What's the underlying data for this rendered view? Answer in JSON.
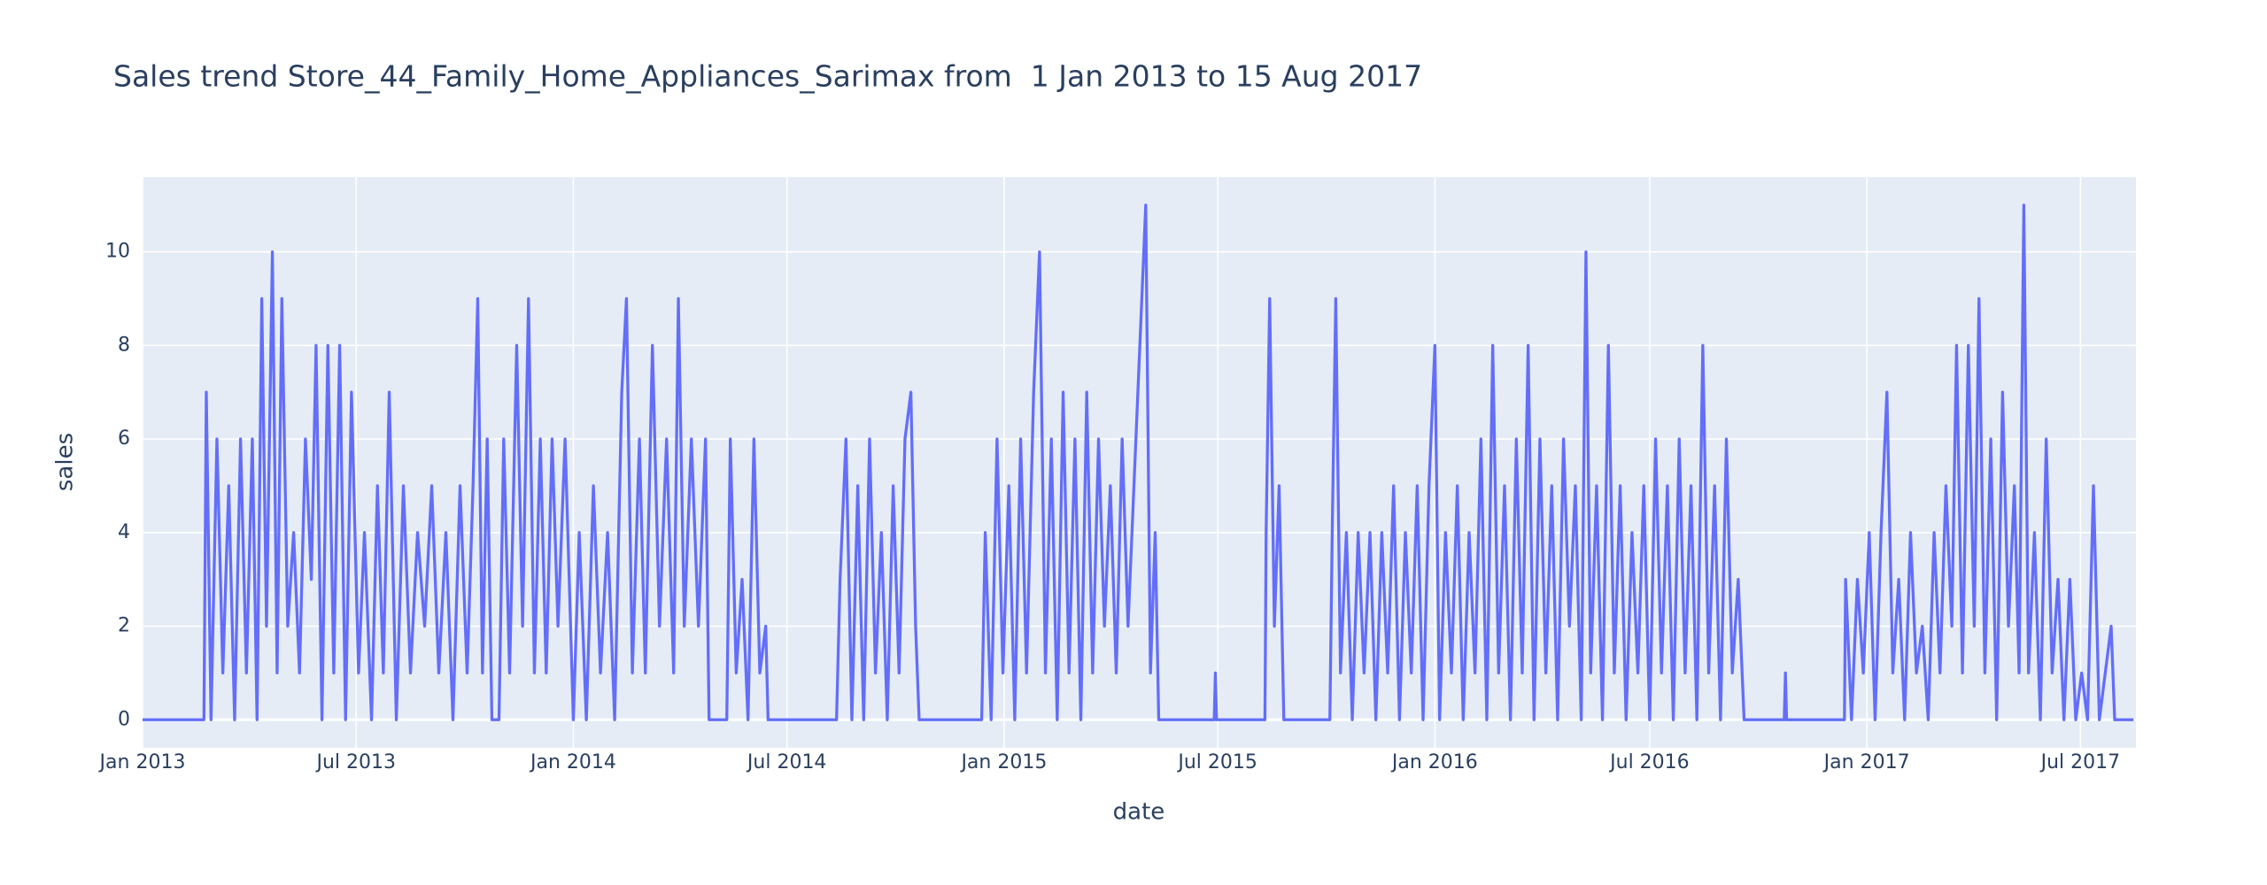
{
  "chart_data": {
    "type": "line",
    "title": "Sales trend Store_44_Family_Home_Appliances_Sarimax from  1 Jan 2013 to 15 Aug 2017",
    "x_label": "date",
    "y_label": "sales",
    "color": "#636efa",
    "grid": true,
    "xlim": [
      "2013-01-01",
      "2017-08-17"
    ],
    "ylim": [
      -0.6,
      11.6
    ],
    "yticks": [
      0,
      2,
      4,
      6,
      8,
      10
    ],
    "xticks": [
      {
        "value": "2013-01-01",
        "label": "Jan 2013"
      },
      {
        "value": "2013-07-01",
        "label": "Jul 2013"
      },
      {
        "value": "2014-01-01",
        "label": "Jan 2014"
      },
      {
        "value": "2014-07-01",
        "label": "Jul 2014"
      },
      {
        "value": "2015-01-01",
        "label": "Jan 2015"
      },
      {
        "value": "2015-07-01",
        "label": "Jul 2015"
      },
      {
        "value": "2016-01-01",
        "label": "Jan 2016"
      },
      {
        "value": "2016-07-01",
        "label": "Jul 2016"
      },
      {
        "value": "2017-01-01",
        "label": "Jan 2017"
      },
      {
        "value": "2017-07-01",
        "label": "Jul 2017"
      }
    ],
    "x": [
      "2013-01-01",
      "2013-02-22",
      "2013-02-24",
      "2013-02-28",
      "2013-03-05",
      "2013-03-10",
      "2013-03-15",
      "2013-03-20",
      "2013-03-25",
      "2013-03-30",
      "2013-04-04",
      "2013-04-08",
      "2013-04-12",
      "2013-04-16",
      "2013-04-21",
      "2013-04-25",
      "2013-04-29",
      "2013-05-04",
      "2013-05-09",
      "2013-05-14",
      "2013-05-19",
      "2013-05-24",
      "2013-05-28",
      "2013-06-02",
      "2013-06-07",
      "2013-06-12",
      "2013-06-17",
      "2013-06-22",
      "2013-06-27",
      "2013-07-03",
      "2013-07-08",
      "2013-07-14",
      "2013-07-19",
      "2013-07-24",
      "2013-07-29",
      "2013-08-04",
      "2013-08-10",
      "2013-08-16",
      "2013-08-22",
      "2013-08-28",
      "2013-09-03",
      "2013-09-09",
      "2013-09-15",
      "2013-09-21",
      "2013-09-27",
      "2013-10-03",
      "2013-10-08",
      "2013-10-12",
      "2013-10-16",
      "2013-10-20",
      "2013-10-24",
      "2013-10-30",
      "2013-11-03",
      "2013-11-08",
      "2013-11-14",
      "2013-11-19",
      "2013-11-24",
      "2013-11-29",
      "2013-12-04",
      "2013-12-09",
      "2013-12-14",
      "2013-12-19",
      "2013-12-25",
      "2014-01-01",
      "2014-01-06",
      "2014-01-12",
      "2014-01-18",
      "2014-01-24",
      "2014-01-30",
      "2014-02-05",
      "2014-02-11",
      "2014-02-15",
      "2014-02-20",
      "2014-02-26",
      "2014-03-03",
      "2014-03-09",
      "2014-03-15",
      "2014-03-21",
      "2014-03-27",
      "2014-03-31",
      "2014-04-05",
      "2014-04-11",
      "2014-04-17",
      "2014-04-23",
      "2014-04-26",
      "2014-05-11",
      "2014-05-14",
      "2014-05-19",
      "2014-05-24",
      "2014-05-29",
      "2014-06-03",
      "2014-06-08",
      "2014-06-13",
      "2014-06-15",
      "2014-08-12",
      "2014-08-15",
      "2014-08-20",
      "2014-08-25",
      "2014-08-30",
      "2014-09-04",
      "2014-09-09",
      "2014-09-14",
      "2014-09-19",
      "2014-09-24",
      "2014-09-29",
      "2014-10-04",
      "2014-10-09",
      "2014-10-14",
      "2014-10-18",
      "2014-10-21",
      "2014-12-13",
      "2014-12-16",
      "2014-12-21",
      "2014-12-26",
      "2014-12-31",
      "2015-01-05",
      "2015-01-10",
      "2015-01-15",
      "2015-01-20",
      "2015-01-26",
      "2015-01-31",
      "2015-02-05",
      "2015-02-10",
      "2015-02-15",
      "2015-02-20",
      "2015-02-25",
      "2015-03-02",
      "2015-03-07",
      "2015-03-12",
      "2015-03-17",
      "2015-03-22",
      "2015-03-27",
      "2015-04-01",
      "2015-04-06",
      "2015-04-11",
      "2015-04-16",
      "2015-04-21",
      "2015-04-26",
      "2015-05-01",
      "2015-05-05",
      "2015-05-09",
      "2015-05-12",
      "2015-06-28",
      "2015-06-29",
      "2015-06-30",
      "2015-08-10",
      "2015-08-11",
      "2015-08-14",
      "2015-08-18",
      "2015-08-22",
      "2015-08-26",
      "2015-10-04",
      "2015-10-06",
      "2015-10-09",
      "2015-10-13",
      "2015-10-18",
      "2015-10-23",
      "2015-10-28",
      "2015-11-02",
      "2015-11-07",
      "2015-11-12",
      "2015-11-17",
      "2015-11-22",
      "2015-11-27",
      "2015-12-02",
      "2015-12-07",
      "2015-12-12",
      "2015-12-17",
      "2015-12-22",
      "2015-12-27",
      "2016-01-01",
      "2016-01-05",
      "2016-01-10",
      "2016-01-15",
      "2016-01-20",
      "2016-01-25",
      "2016-01-30",
      "2016-02-04",
      "2016-02-09",
      "2016-02-14",
      "2016-02-19",
      "2016-02-24",
      "2016-02-29",
      "2016-03-05",
      "2016-03-10",
      "2016-03-15",
      "2016-03-20",
      "2016-03-25",
      "2016-03-30",
      "2016-04-04",
      "2016-04-09",
      "2016-04-14",
      "2016-04-19",
      "2016-04-24",
      "2016-04-29",
      "2016-05-04",
      "2016-05-08",
      "2016-05-12",
      "2016-05-17",
      "2016-05-22",
      "2016-05-27",
      "2016-06-01",
      "2016-06-06",
      "2016-06-11",
      "2016-06-16",
      "2016-06-21",
      "2016-06-26",
      "2016-07-01",
      "2016-07-06",
      "2016-07-11",
      "2016-07-16",
      "2016-07-21",
      "2016-07-26",
      "2016-07-31",
      "2016-08-05",
      "2016-08-10",
      "2016-08-15",
      "2016-08-20",
      "2016-08-25",
      "2016-08-30",
      "2016-09-04",
      "2016-09-09",
      "2016-09-14",
      "2016-09-19",
      "2016-09-22",
      "2016-10-23",
      "2016-10-24",
      "2016-10-25",
      "2016-12-13",
      "2016-12-14",
      "2016-12-19",
      "2016-12-24",
      "2016-12-29",
      "2017-01-03",
      "2017-01-08",
      "2017-01-13",
      "2017-01-18",
      "2017-01-23",
      "2017-01-28",
      "2017-02-02",
      "2017-02-07",
      "2017-02-12",
      "2017-02-17",
      "2017-02-22",
      "2017-02-27",
      "2017-03-04",
      "2017-03-09",
      "2017-03-14",
      "2017-03-18",
      "2017-03-23",
      "2017-03-28",
      "2017-04-02",
      "2017-04-06",
      "2017-04-11",
      "2017-04-16",
      "2017-04-21",
      "2017-04-26",
      "2017-05-01",
      "2017-05-06",
      "2017-05-10",
      "2017-05-14",
      "2017-05-18",
      "2017-05-23",
      "2017-05-28",
      "2017-06-02",
      "2017-06-07",
      "2017-06-12",
      "2017-06-17",
      "2017-06-22",
      "2017-06-27",
      "2017-07-02",
      "2017-07-07",
      "2017-07-12",
      "2017-07-17",
      "2017-07-22",
      "2017-07-27",
      "2017-07-30",
      "2017-08-15"
    ],
    "values": [
      0,
      0,
      7,
      0,
      6,
      1,
      5,
      0,
      6,
      1,
      6,
      0,
      9,
      2,
      10,
      1,
      9,
      2,
      4,
      1,
      6,
      3,
      8,
      0,
      8,
      1,
      8,
      0,
      7,
      1,
      4,
      0,
      5,
      1,
      7,
      0,
      5,
      1,
      4,
      2,
      5,
      1,
      4,
      0,
      5,
      1,
      5,
      9,
      1,
      6,
      0,
      0,
      6,
      1,
      8,
      2,
      9,
      1,
      6,
      1,
      6,
      2,
      6,
      0,
      4,
      0,
      5,
      1,
      4,
      0,
      7,
      9,
      1,
      6,
      1,
      8,
      2,
      6,
      1,
      9,
      2,
      6,
      2,
      6,
      0,
      0,
      6,
      1,
      3,
      0,
      6,
      1,
      2,
      0,
      0,
      3,
      6,
      0,
      5,
      0,
      6,
      1,
      4,
      0,
      5,
      1,
      6,
      7,
      2,
      0,
      0,
      4,
      0,
      6,
      1,
      5,
      0,
      6,
      1,
      7,
      10,
      1,
      6,
      0,
      7,
      1,
      6,
      0,
      7,
      1,
      6,
      2,
      5,
      1,
      6,
      2,
      5,
      8,
      11,
      1,
      4,
      0,
      0,
      1,
      0,
      0,
      4,
      9,
      2,
      5,
      0,
      0,
      4,
      9,
      1,
      4,
      0,
      4,
      1,
      4,
      0,
      4,
      1,
      5,
      0,
      4,
      1,
      5,
      0,
      5,
      8,
      0,
      4,
      1,
      5,
      0,
      4,
      1,
      6,
      0,
      8,
      1,
      5,
      0,
      6,
      1,
      8,
      0,
      6,
      1,
      5,
      0,
      6,
      2,
      5,
      0,
      10,
      1,
      5,
      0,
      8,
      1,
      5,
      0,
      4,
      1,
      5,
      0,
      6,
      1,
      5,
      0,
      6,
      1,
      5,
      0,
      8,
      1,
      5,
      0,
      6,
      1,
      3,
      0,
      0,
      0,
      1,
      0,
      0,
      3,
      0,
      3,
      1,
      4,
      0,
      4,
      7,
      1,
      3,
      0,
      4,
      1,
      2,
      0,
      4,
      1,
      5,
      2,
      8,
      1,
      8,
      2,
      9,
      1,
      6,
      0,
      7,
      2,
      5,
      1,
      11,
      1,
      4,
      0,
      6,
      1,
      3,
      0,
      3,
      0,
      1,
      0,
      5,
      0,
      1,
      2,
      0,
      0
    ]
  }
}
